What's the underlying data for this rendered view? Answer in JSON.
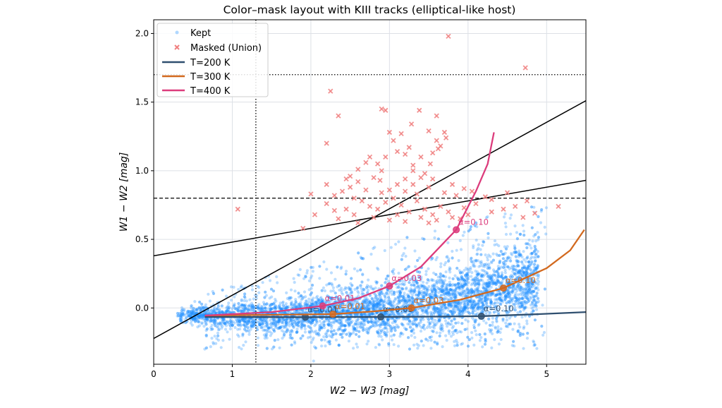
{
  "chart_data": {
    "type": "scatter",
    "title": "Color–mask layout with KIII tracks (elliptical-like host)",
    "xlabel": "W2 − W3 [mag]",
    "ylabel": "W1 − W2 [mag]",
    "xlim": [
      0,
      5.5
    ],
    "ylim": [
      -0.41,
      2.1
    ],
    "xticks": [
      "0",
      "1",
      "2",
      "3",
      "4",
      "5"
    ],
    "xtick_values": [
      0,
      1,
      2,
      3,
      4,
      5
    ],
    "yticks": [
      "0.0",
      "0.5",
      "1.0",
      "1.5",
      "2.0"
    ],
    "ytick_values": [
      0,
      0.5,
      1.0,
      1.5,
      2.0
    ],
    "grid": true,
    "legend_placement": "top-left",
    "legend": [
      "Kept",
      "Masked (Union)",
      "T=200 K",
      "T=300 K",
      "T=400 K"
    ],
    "colors": {
      "kept": "#1e90ff",
      "masked": "#f08080",
      "t200": "#2f4f6f",
      "t300": "#d2691e",
      "t400": "#dc3c7c"
    },
    "reference_lines": [
      {
        "kind": "horizontal",
        "style": "dotted",
        "y": 1.7
      },
      {
        "kind": "horizontal",
        "style": "dashed",
        "y": 0.8
      },
      {
        "kind": "vertical",
        "style": "dotted",
        "x": 1.3
      },
      {
        "kind": "line",
        "style": "solid",
        "slope": 0.315,
        "intercept": -0.222
      },
      {
        "kind": "line",
        "style": "solid",
        "slope": 0.1,
        "intercept": 0.38
      }
    ],
    "tracks": [
      {
        "name": "T=200 K",
        "x": [
          0.65,
          1.3,
          1.93,
          2.89,
          3.6,
          4.17,
          4.9,
          5.5
        ],
        "y": [
          -0.065,
          -0.066,
          -0.067,
          -0.065,
          -0.063,
          -0.06,
          -0.045,
          -0.03
        ],
        "markers": [
          {
            "label": "α=0.01",
            "x": 1.93,
            "y": -0.067
          },
          {
            "label": "α=0.03",
            "x": 2.89,
            "y": -0.065
          },
          {
            "label": "α=0.10",
            "x": 4.17,
            "y": -0.06
          }
        ]
      },
      {
        "name": "T=300 K",
        "x": [
          0.65,
          1.5,
          2.28,
          2.8,
          3.28,
          3.9,
          4.45,
          5.0,
          5.3,
          5.48
        ],
        "y": [
          -0.055,
          -0.05,
          -0.045,
          -0.025,
          0.0,
          0.06,
          0.145,
          0.29,
          0.42,
          0.57
        ],
        "markers": [
          {
            "label": "α=0.01",
            "x": 2.28,
            "y": -0.045
          },
          {
            "label": "α=0.03",
            "x": 3.28,
            "y": 0.0
          },
          {
            "label": "α=0.10",
            "x": 4.45,
            "y": 0.145
          }
        ]
      },
      {
        "name": "T=400 K",
        "x": [
          0.65,
          1.5,
          2.15,
          2.6,
          3.0,
          3.4,
          3.85,
          4.1,
          4.25,
          4.33
        ],
        "y": [
          -0.055,
          -0.03,
          0.015,
          0.07,
          0.16,
          0.3,
          0.57,
          0.85,
          1.05,
          1.28
        ],
        "markers": [
          {
            "label": "α=0.01",
            "x": 2.15,
            "y": 0.015
          },
          {
            "label": "α=0.03",
            "x": 3.0,
            "y": 0.16
          },
          {
            "label": "α=0.10",
            "x": 3.85,
            "y": 0.57
          }
        ]
      }
    ],
    "masked_points": [
      [
        1.07,
        0.72
      ],
      [
        1.9,
        0.58
      ],
      [
        2.0,
        0.83
      ],
      [
        2.05,
        0.68
      ],
      [
        2.25,
        1.58
      ],
      [
        2.35,
        1.4
      ],
      [
        3.75,
        1.98
      ],
      [
        4.73,
        1.75
      ],
      [
        2.2,
        1.2
      ],
      [
        2.9,
        1.45
      ],
      [
        2.95,
        1.44
      ],
      [
        3.38,
        1.44
      ],
      [
        3.28,
        1.34
      ],
      [
        3.52,
        1.05
      ],
      [
        3.6,
        1.22
      ],
      [
        3.65,
        1.18
      ],
      [
        3.55,
        1.13
      ],
      [
        3.6,
        1.4
      ],
      [
        3.7,
        1.28
      ],
      [
        3.72,
        1.24
      ],
      [
        3.5,
        1.29
      ],
      [
        3.62,
        1.16
      ],
      [
        3.15,
        1.27
      ],
      [
        3.3,
        1.04
      ],
      [
        3.0,
        1.28
      ],
      [
        3.05,
        1.22
      ],
      [
        3.1,
        1.14
      ],
      [
        3.2,
        1.12
      ],
      [
        2.95,
        1.1
      ],
      [
        2.9,
        1.0
      ],
      [
        2.88,
        0.93
      ],
      [
        2.75,
        1.1
      ],
      [
        2.7,
        1.06
      ],
      [
        2.6,
        1.01
      ],
      [
        2.5,
        0.96
      ],
      [
        2.45,
        0.94
      ],
      [
        2.6,
        0.92
      ],
      [
        2.8,
        0.95
      ],
      [
        3.2,
        0.94
      ],
      [
        3.3,
        0.9
      ],
      [
        3.4,
        0.95
      ],
      [
        3.5,
        0.88
      ],
      [
        3.7,
        0.84
      ],
      [
        3.85,
        0.82
      ],
      [
        3.95,
        0.87
      ],
      [
        4.05,
        0.85
      ],
      [
        4.22,
        0.81
      ],
      [
        4.5,
        0.84
      ],
      [
        4.6,
        0.74
      ],
      [
        4.75,
        0.78
      ],
      [
        5.15,
        0.74
      ],
      [
        4.3,
        0.7
      ],
      [
        4.45,
        0.72
      ],
      [
        4.1,
        0.76
      ],
      [
        3.95,
        0.73
      ],
      [
        3.75,
        0.7
      ],
      [
        2.2,
        0.9
      ],
      [
        2.3,
        0.82
      ],
      [
        2.4,
        0.85
      ],
      [
        2.55,
        0.8
      ],
      [
        2.65,
        0.78
      ],
      [
        2.75,
        0.74
      ],
      [
        2.85,
        0.72
      ],
      [
        2.95,
        0.77
      ],
      [
        3.05,
        0.8
      ],
      [
        3.15,
        0.75
      ],
      [
        3.25,
        0.7
      ],
      [
        3.35,
        0.78
      ],
      [
        3.45,
        0.72
      ],
      [
        3.55,
        0.68
      ],
      [
        3.65,
        0.74
      ],
      [
        3.8,
        0.66
      ],
      [
        2.45,
        0.72
      ],
      [
        2.55,
        0.68
      ],
      [
        2.35,
        0.65
      ],
      [
        2.6,
        0.62
      ],
      [
        2.8,
        0.66
      ],
      [
        3.0,
        0.64
      ],
      [
        3.1,
        0.68
      ],
      [
        3.2,
        0.63
      ],
      [
        3.4,
        0.66
      ],
      [
        3.5,
        0.62
      ],
      [
        3.6,
        0.64
      ],
      [
        3.9,
        0.65
      ],
      [
        4.0,
        0.68
      ],
      [
        2.2,
        0.76
      ],
      [
        2.3,
        0.71
      ],
      [
        2.5,
        0.88
      ],
      [
        3.0,
        0.86
      ],
      [
        3.1,
        0.9
      ],
      [
        3.2,
        0.85
      ],
      [
        3.35,
        0.83
      ],
      [
        2.7,
        0.86
      ],
      [
        2.9,
        0.84
      ],
      [
        3.45,
        0.98
      ],
      [
        3.55,
        0.94
      ],
      [
        3.8,
        0.9
      ],
      [
        4.3,
        0.79
      ],
      [
        4.7,
        0.66
      ],
      [
        4.85,
        0.69
      ],
      [
        3.3,
        1.0
      ],
      [
        3.25,
        1.17
      ],
      [
        2.85,
        1.05
      ],
      [
        3.4,
        1.1
      ]
    ]
  }
}
